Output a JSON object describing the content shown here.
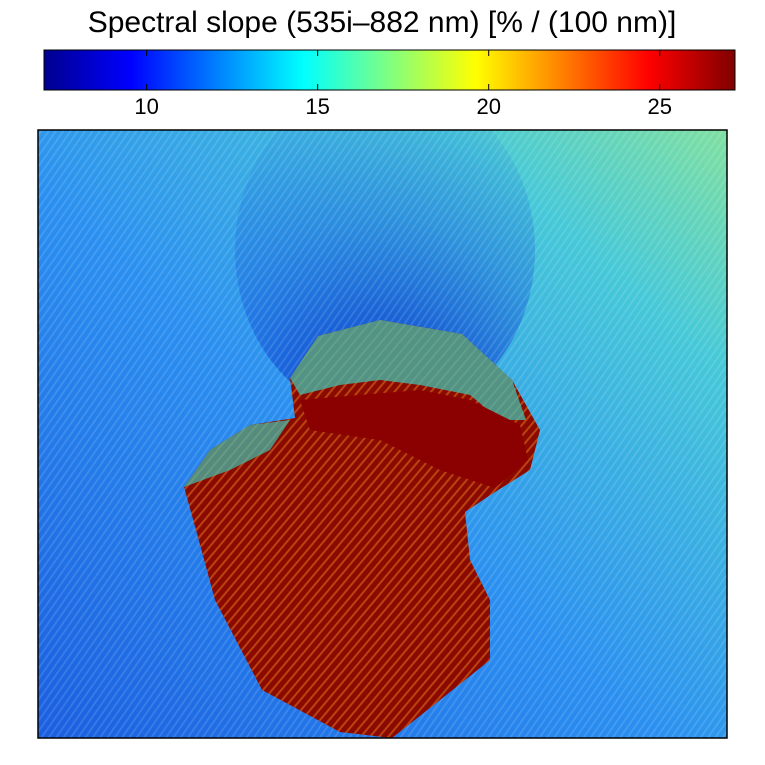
{
  "chart_data": {
    "type": "image",
    "title": "Spectral slope (535i–882 nm) [% / (100 nm)]",
    "colorbar": {
      "colormap": "jet",
      "lim": [
        7,
        27.2
      ],
      "ticks": [
        10,
        15,
        20,
        25
      ]
    }
  }
}
